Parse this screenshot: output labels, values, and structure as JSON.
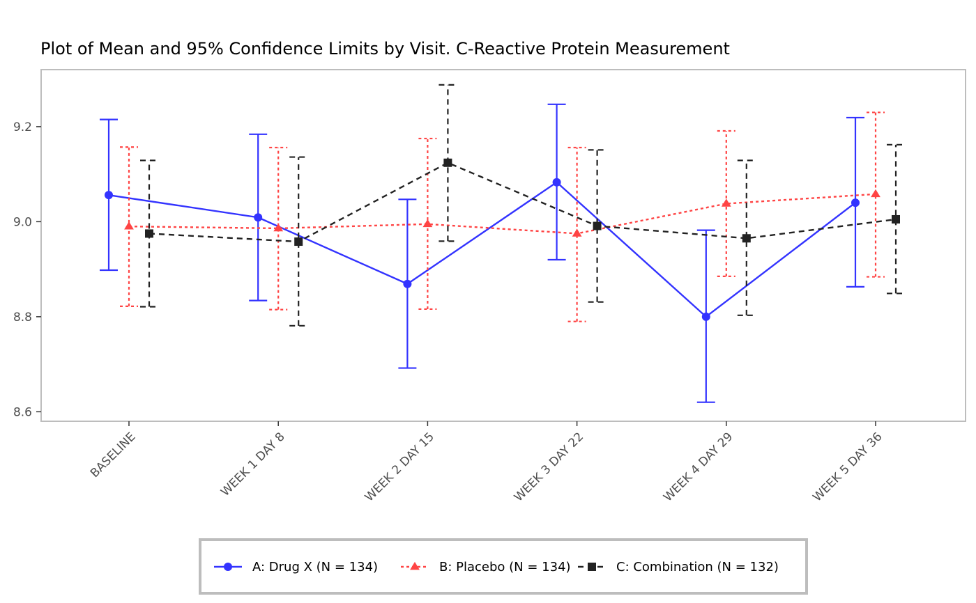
{
  "chart_data": {
    "type": "line",
    "title": "Plot of Mean and 95% Confidence Limits by Visit. C-Reactive Protein Measurement",
    "xlabel": "",
    "ylabel": "",
    "categories": [
      "BASELINE",
      "WEEK 1 DAY 8",
      "WEEK 2 DAY 15",
      "WEEK 3 DAY 22",
      "WEEK 4 DAY 29",
      "WEEK 5 DAY 36"
    ],
    "ylim": [
      8.58,
      9.32
    ],
    "yticks": [
      8.6,
      8.8,
      9.0,
      9.2
    ],
    "ytick_labels": [
      "8.6",
      "8.8",
      "9.0",
      "9.2"
    ],
    "grid": false,
    "legend_position": "bottom",
    "series": [
      {
        "name": "A: Drug X (N = 134)",
        "color": "#3333ff",
        "marker": "circle",
        "linestyle": "solid",
        "mean": [
          9.056,
          9.009,
          8.869,
          9.083,
          8.8,
          9.04
        ],
        "lower": [
          8.898,
          8.834,
          8.692,
          8.92,
          8.62,
          8.863
        ],
        "upper": [
          9.215,
          9.184,
          9.047,
          9.247,
          8.982,
          9.219
        ]
      },
      {
        "name": "B: Placebo (N = 134)",
        "color": "#ff4444",
        "marker": "triangle",
        "linestyle": "dotted",
        "mean": [
          8.99,
          8.986,
          8.995,
          8.975,
          9.038,
          9.058
        ],
        "lower": [
          8.822,
          8.815,
          8.816,
          8.79,
          8.885,
          8.884
        ],
        "upper": [
          9.157,
          9.156,
          9.175,
          9.156,
          9.191,
          9.23
        ]
      },
      {
        "name": "C: Combination (N = 132)",
        "color": "#222222",
        "marker": "square",
        "linestyle": "dashed",
        "mean": [
          8.975,
          8.958,
          9.124,
          8.991,
          8.965,
          9.005
        ],
        "lower": [
          8.821,
          8.781,
          8.959,
          8.831,
          8.803,
          8.849
        ],
        "upper": [
          9.129,
          9.136,
          9.288,
          9.151,
          9.129,
          9.162
        ]
      }
    ]
  }
}
